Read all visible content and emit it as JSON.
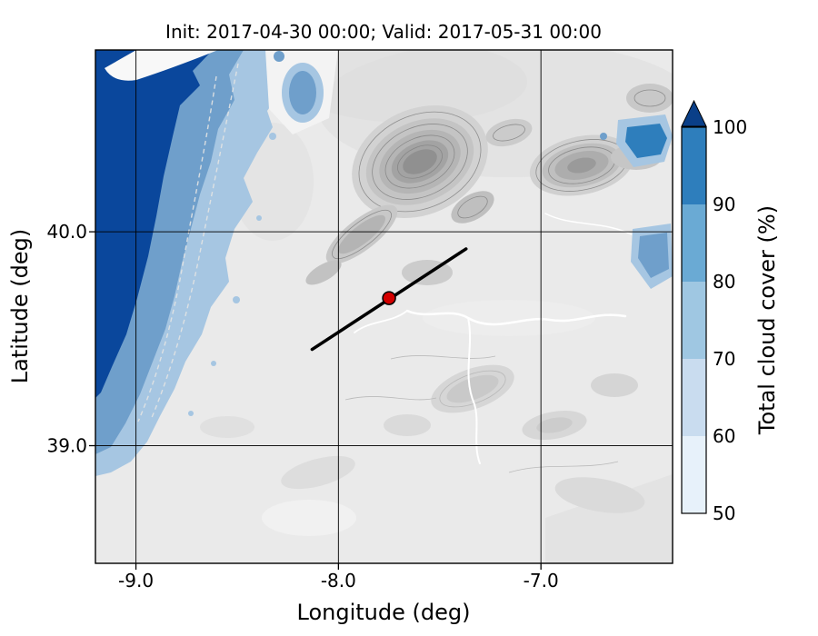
{
  "chart_data": {
    "type": "heatmap",
    "title": "Init: 2017-04-30 00:00; Valid: 2017-05-31 00:00",
    "xlabel": "Longitude (deg)",
    "ylabel": "Latitude (deg)",
    "x_ticks": [
      -9.0,
      -8.0,
      -7.0
    ],
    "x_tick_labels": [
      "-9.0",
      "-8.0",
      "-7.0"
    ],
    "y_ticks": [
      40.0,
      39.0
    ],
    "y_tick_labels": [
      "40.0",
      "39.0"
    ],
    "xlim": [
      -9.2,
      -6.35
    ],
    "ylim": [
      38.45,
      40.85
    ],
    "grid": true,
    "colorbar": {
      "label": "Total cloud cover (%)",
      "tick_labels": [
        "100",
        "90",
        "80",
        "70",
        "60",
        "50"
      ],
      "levels": [
        50,
        60,
        70,
        80,
        90,
        100
      ],
      "extend": "max",
      "extend_color": "#0a3f88",
      "segment_colors_low_to_high": [
        "#e7f1fa",
        "#c9dcef",
        "#9fc7e2",
        "#6aaad4",
        "#2e7ebc"
      ]
    },
    "overlay": {
      "transect_line": {
        "start_lon": -8.13,
        "start_lat": 39.45,
        "end_lon": -7.37,
        "end_lat": 39.92,
        "color": "#000000"
      },
      "marker": {
        "lon": -7.75,
        "lat": 39.69,
        "fill": "#d40000",
        "edge": "#000000"
      }
    },
    "map_colors": {
      "ocean_full_cover": "#0a479c",
      "cloud_band": "#6f9fcb",
      "cloud_fringe": "#a6c6e2",
      "cloud_dense_patch": "#2e7ebc",
      "land_base": "#eaeaea"
    }
  }
}
